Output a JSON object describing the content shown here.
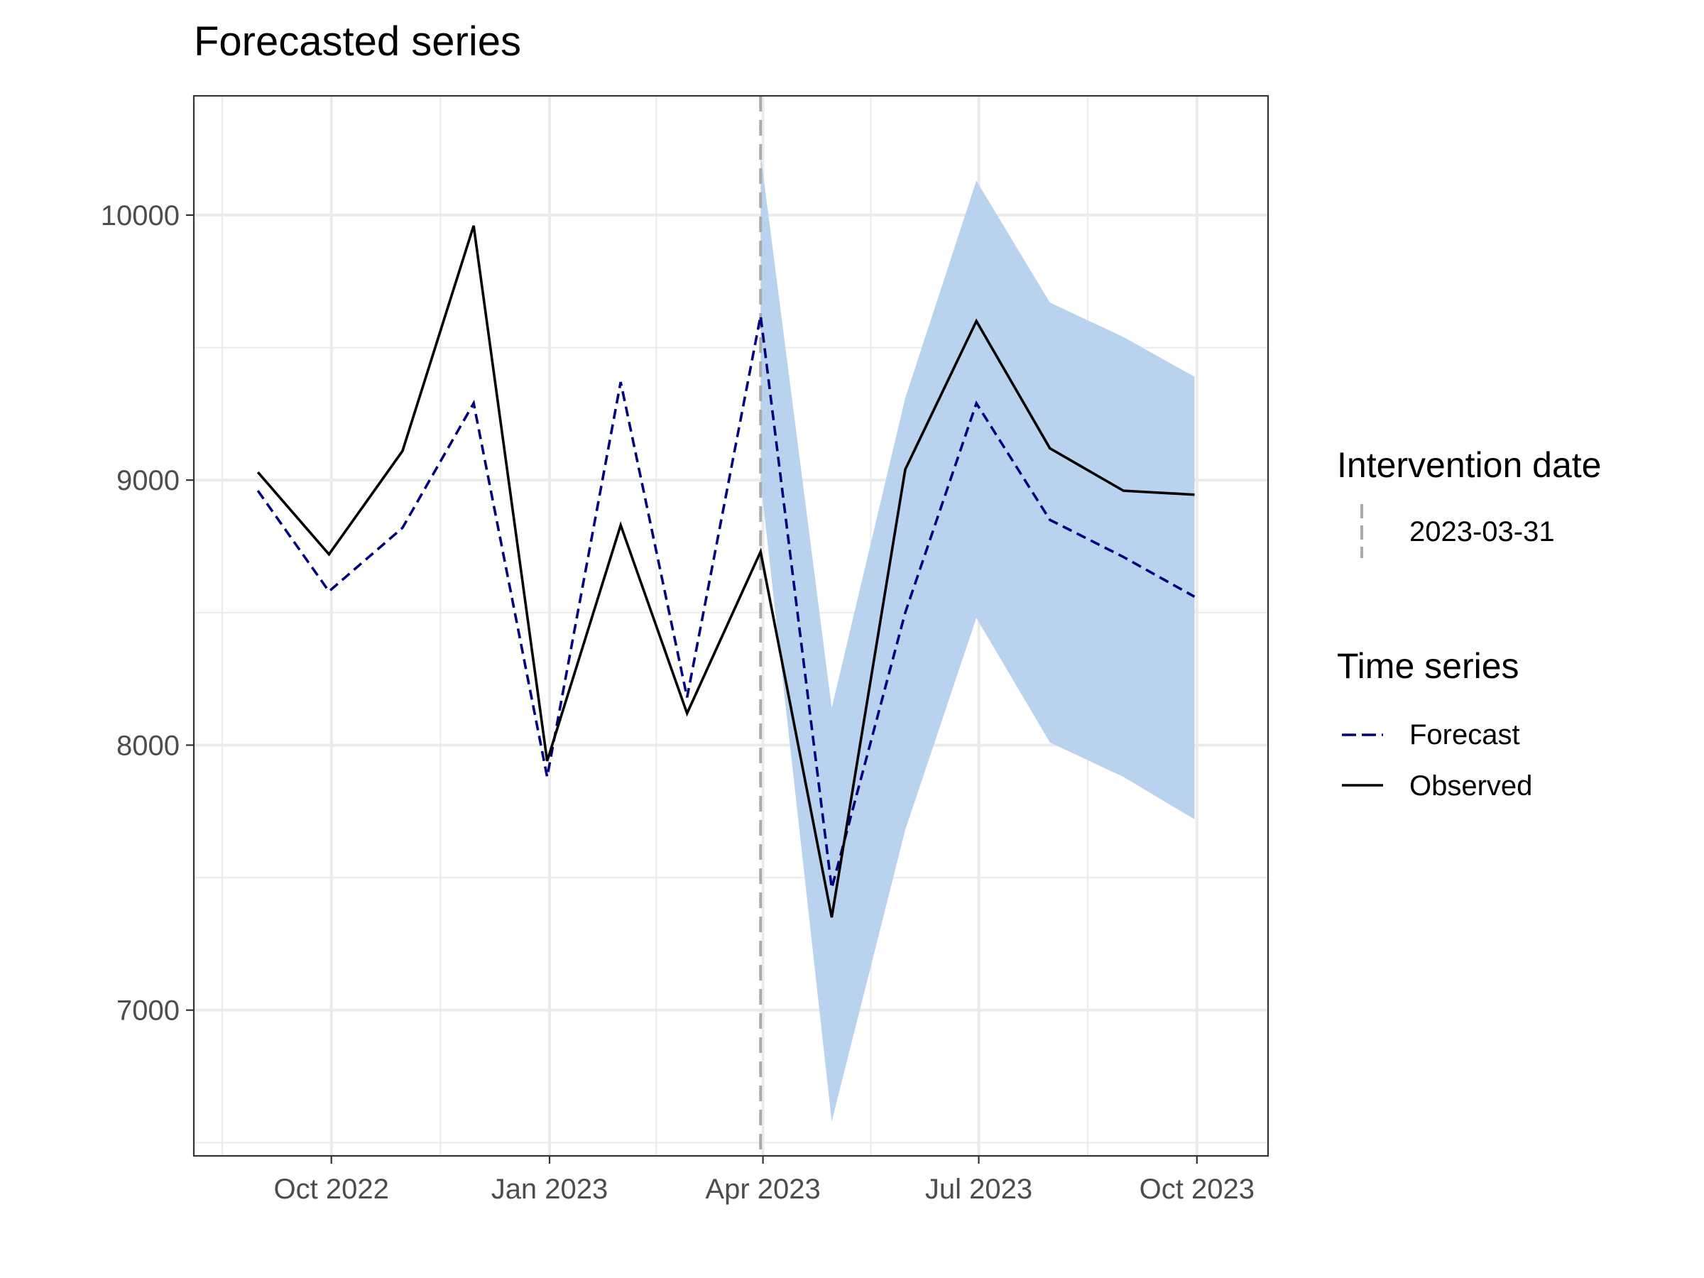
{
  "chart_data": {
    "type": "line",
    "title": "Forecasted series",
    "xlabel": "",
    "ylabel": "",
    "x_ticks": [
      "Oct 2022",
      "Jan 2023",
      "Apr 2023",
      "Jul 2023",
      "Oct 2023"
    ],
    "y_ticks": [
      "7000",
      "8000",
      "9000",
      "10000"
    ],
    "ylim": [
      6450,
      10450
    ],
    "xlim": [
      "2022-08-04",
      "2023-10-31"
    ],
    "grid": true,
    "legend_position": "right",
    "dates": [
      "2022-08-31",
      "2022-09-30",
      "2022-10-31",
      "2022-11-30",
      "2022-12-31",
      "2023-01-31",
      "2023-02-28",
      "2023-03-31",
      "2023-04-30",
      "2023-05-31",
      "2023-06-30",
      "2023-07-31",
      "2023-08-31",
      "2023-09-30"
    ],
    "series": [
      {
        "name": "Observed",
        "color": "#000000",
        "values": [
          9030,
          8720,
          9110,
          9960,
          7940,
          8830,
          8120,
          8730,
          7350,
          9040,
          9600,
          9120,
          8960,
          8945
        ]
      },
      {
        "name": "Forecast",
        "color": "#000080",
        "values": [
          8960,
          8580,
          8820,
          9290,
          7880,
          9370,
          8180,
          9620,
          7460,
          8500,
          9290,
          8850,
          8710,
          8560
        ]
      }
    ],
    "interval": {
      "color": "#b9d3ee",
      "dates": [
        "2023-03-31",
        "2023-04-30",
        "2023-05-31",
        "2023-06-30",
        "2023-07-31",
        "2023-08-31",
        "2023-09-30"
      ],
      "lower": [
        9000,
        6580,
        7680,
        8480,
        8010,
        7880,
        7720
      ],
      "upper": [
        10230,
        8140,
        9310,
        10130,
        9670,
        9540,
        9390
      ]
    },
    "intervention": {
      "date": "2023-03-31",
      "color": "#aaaaaa"
    },
    "legends": [
      {
        "title": "Intervention date",
        "entries": [
          "2023-03-31"
        ]
      },
      {
        "title": "Time series",
        "entries": [
          "Forecast",
          "Observed"
        ]
      }
    ]
  }
}
